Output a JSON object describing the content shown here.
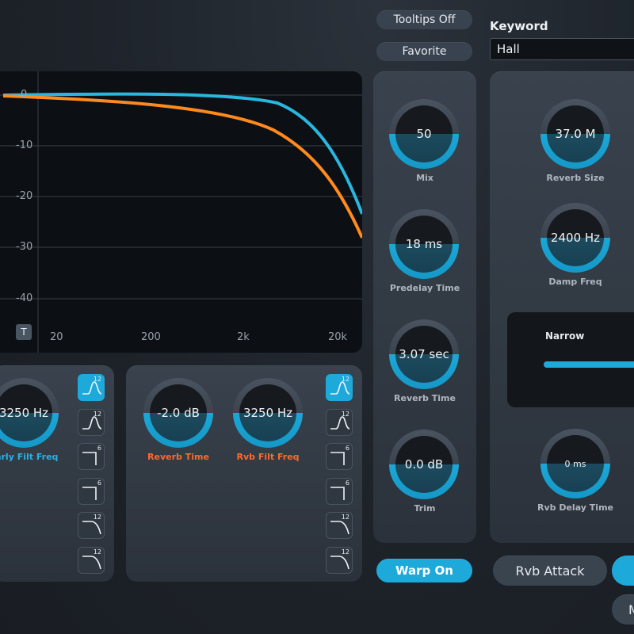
{
  "header": {
    "tooltips_label": "Tooltips Off",
    "favorite_label": "Favorite",
    "keyword_label": "Keyword",
    "keyword_value": "Hall"
  },
  "graph": {
    "y_labels": [
      "0",
      "-10",
      "-20",
      "-30",
      "-40"
    ],
    "x_labels": [
      "20",
      "200",
      "2k",
      "20k"
    ],
    "t_button": "T",
    "colors": {
      "series1": "#29b6df",
      "series2": "#ff8a1e",
      "grid": "#3a4048"
    }
  },
  "center_column": {
    "knobs": [
      {
        "value": "50",
        "label": "Mix"
      },
      {
        "value": "18 ms",
        "label": "Predelay Time"
      },
      {
        "value": "3.07 sec",
        "label": "Reverb Time"
      },
      {
        "value": "0.0 dB",
        "label": "Trim"
      }
    ],
    "warp_label": "Warp On"
  },
  "right_column": {
    "reverb_size": {
      "value": "37.0 M",
      "label": "Reverb Size"
    },
    "damp_freq": {
      "value": "2400 Hz",
      "label": "Damp Freq"
    },
    "narrow_label": "Narrow",
    "rvb_delay": {
      "value": "0 ms",
      "label": "Rvb Delay Time"
    },
    "rvb_attack_label": "Rvb Attack",
    "m_label": "M"
  },
  "bottom_left": {
    "early_filt": {
      "value": "3250 Hz",
      "label": "Early Filt Freq"
    },
    "filter_orders": [
      "12",
      "12",
      "6",
      "6",
      "12",
      "12"
    ]
  },
  "bottom_mid": {
    "reverb_time": {
      "value": "-2.0 dB",
      "label": "Reverb Time"
    },
    "rvb_filt": {
      "value": "3250 Hz",
      "label": "Rvb Filt Freq"
    },
    "filter_orders": [
      "12",
      "12",
      "6",
      "6",
      "12",
      "12"
    ]
  },
  "accent": "#1ea9db"
}
